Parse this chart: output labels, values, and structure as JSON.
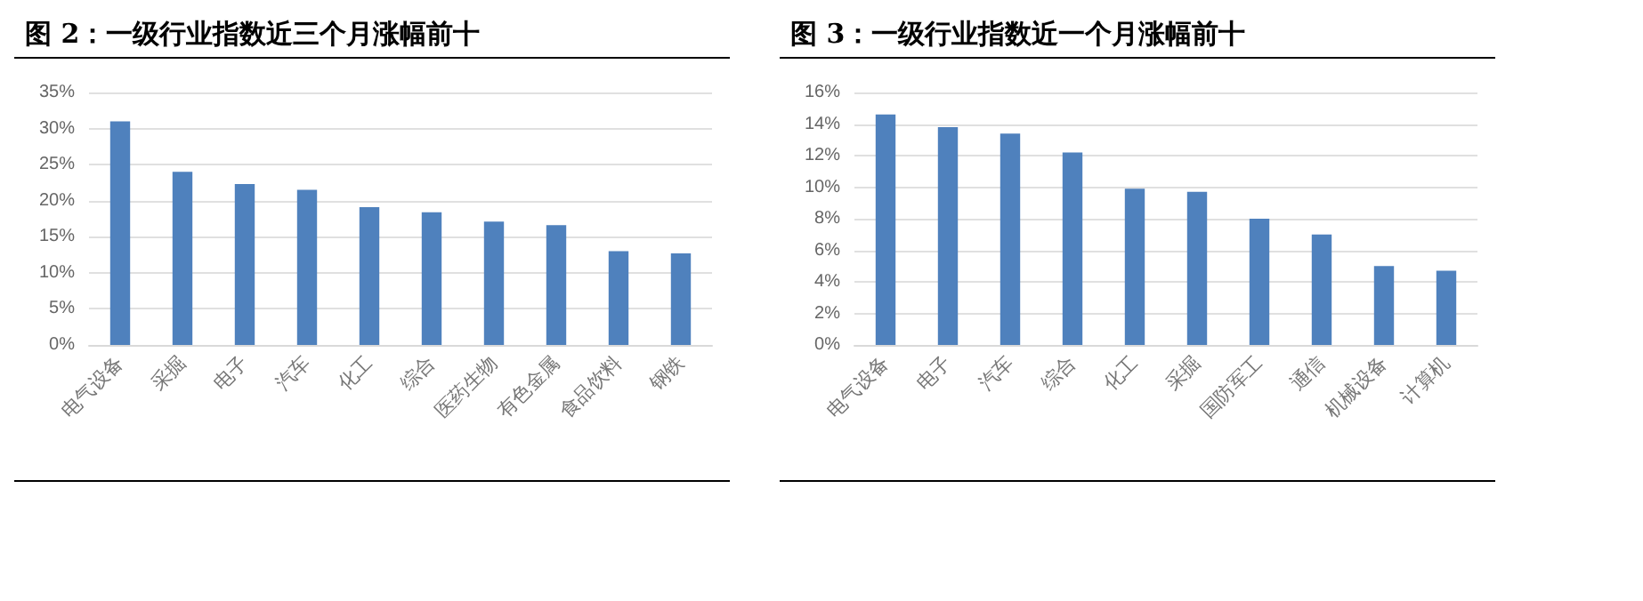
{
  "chart_data": [
    {
      "type": "bar",
      "title": "图  2：一级行业指数近三个月涨幅前十",
      "categories": [
        "电气设备",
        "采掘",
        "电子",
        "汽车",
        "化工",
        "综合",
        "医药生物",
        "有色金属",
        "食品饮料",
        "钢铁"
      ],
      "series": [
        {
          "color": "#4f81bd",
          "values": [
            31,
            24,
            22.3,
            21.5,
            19.1,
            18.4,
            17.1,
            16.6,
            13,
            12.7
          ]
        }
      ],
      "ylim": [
        0,
        35
      ],
      "yticks": [
        {
          "value": 0,
          "label": "0%"
        },
        {
          "value": 5,
          "label": "5%"
        },
        {
          "value": 10,
          "label": "10%"
        },
        {
          "value": 15,
          "label": "15%"
        },
        {
          "value": 20,
          "label": "20%"
        },
        {
          "value": 25,
          "label": "25%"
        },
        {
          "value": 30,
          "label": "30%"
        },
        {
          "value": 35,
          "label": "35%"
        }
      ],
      "grid": "y"
    },
    {
      "type": "bar",
      "title": "图  3：一级行业指数近一个月涨幅前十",
      "categories": [
        "电气设备",
        "电子",
        "汽车",
        "综合",
        "化工",
        "采掘",
        "国防军工",
        "通信",
        "机械设备",
        "计算机"
      ],
      "series": [
        {
          "color": "#4f81bd",
          "values": [
            14.6,
            13.8,
            13.4,
            12.2,
            9.9,
            9.7,
            8.0,
            7.0,
            5.0,
            4.7
          ]
        }
      ],
      "ylim": [
        0,
        16
      ],
      "yticks": [
        {
          "value": 0,
          "label": "0%"
        },
        {
          "value": 2,
          "label": "2%"
        },
        {
          "value": 4,
          "label": "4%"
        },
        {
          "value": 6,
          "label": "6%"
        },
        {
          "value": 8,
          "label": "8%"
        },
        {
          "value": 10,
          "label": "10%"
        },
        {
          "value": 12,
          "label": "12%"
        },
        {
          "value": 14,
          "label": "14%"
        },
        {
          "value": 16,
          "label": "16%"
        }
      ],
      "grid": "y"
    }
  ]
}
